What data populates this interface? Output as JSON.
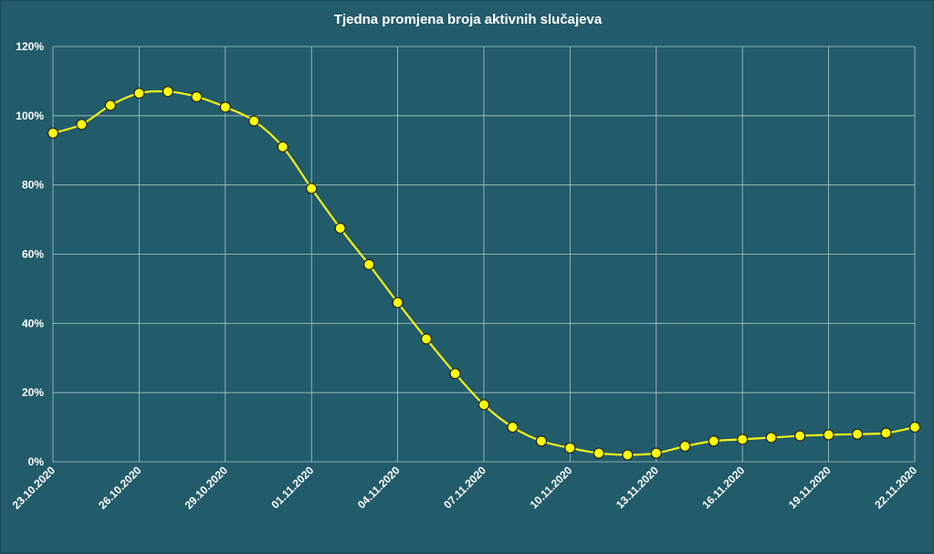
{
  "chart_data": {
    "type": "line",
    "title": "Tjedna promjena broja aktivnih slučajeva",
    "xlabel": "",
    "ylabel": "",
    "y_unit": "%",
    "ylim": [
      0,
      120
    ],
    "y_ticks": [
      "0%",
      "20%",
      "40%",
      "60%",
      "80%",
      "100%",
      "120%"
    ],
    "x_tick_labels": [
      "23.10.2020",
      "26.10.2020",
      "29.10.2020",
      "01.11.2020",
      "04.11.2020",
      "07.11.2020",
      "10.11.2020",
      "13.11.2020",
      "16.11.2020",
      "19.11.2020",
      "22.11.2020"
    ],
    "grid": true,
    "legend": "none",
    "colors": {
      "background": "#225b69",
      "line": "#f2f21a",
      "marker_fill": "#ffff00",
      "marker_edge": "#222222",
      "grid": "#c8d8dc"
    },
    "x": [
      "23.10.2020",
      "24.10.2020",
      "25.10.2020",
      "26.10.2020",
      "27.10.2020",
      "28.10.2020",
      "29.10.2020",
      "30.10.2020",
      "31.10.2020",
      "01.11.2020",
      "02.11.2020",
      "03.11.2020",
      "04.11.2020",
      "05.11.2020",
      "06.11.2020",
      "07.11.2020",
      "08.11.2020",
      "09.11.2020",
      "10.11.2020",
      "11.11.2020",
      "12.11.2020",
      "13.11.2020",
      "14.11.2020",
      "15.11.2020",
      "16.11.2020",
      "17.11.2020",
      "18.11.2020",
      "19.11.2020",
      "20.11.2020",
      "21.11.2020",
      "22.11.2020"
    ],
    "series": [
      {
        "values": [
          95,
          97.5,
          103,
          106.5,
          107,
          105.5,
          102.5,
          98.5,
          91,
          79,
          67.5,
          57,
          46,
          35.5,
          25.5,
          16.5,
          10,
          6,
          4,
          2.5,
          2,
          2.5,
          4.5,
          6,
          6.5,
          7,
          7.5,
          7.8,
          8,
          8.3,
          10
        ]
      }
    ]
  }
}
